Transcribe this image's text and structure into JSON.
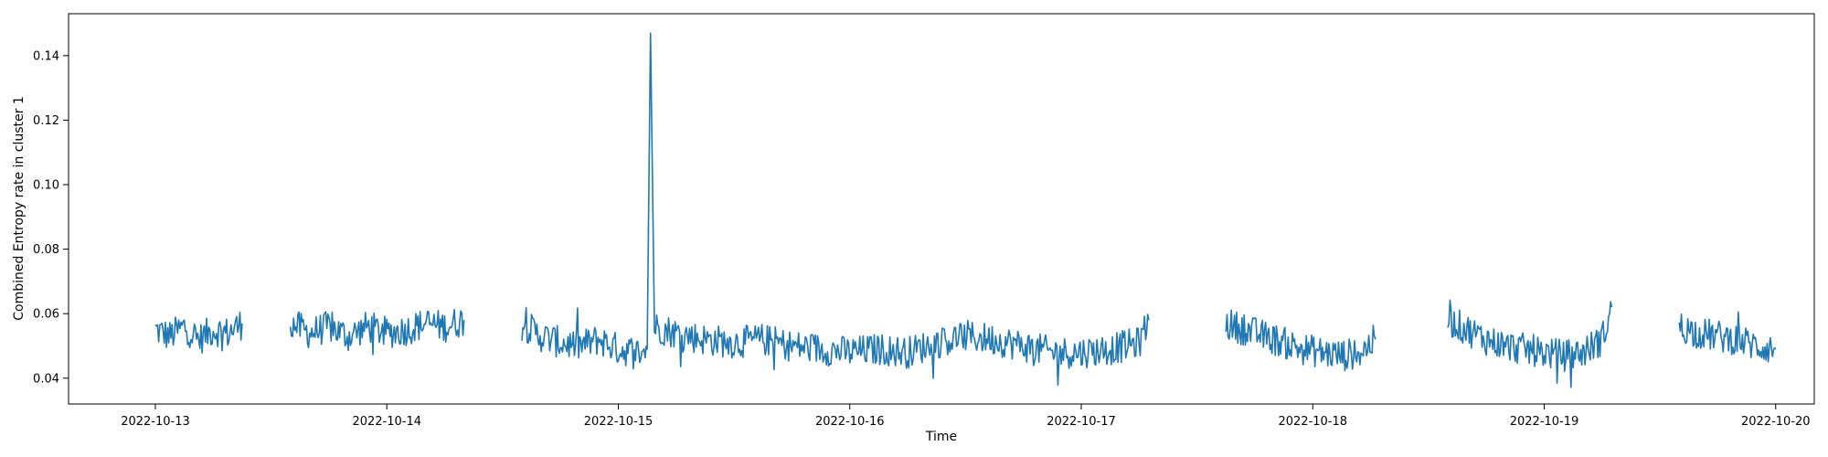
{
  "chart_data": {
    "type": "line",
    "title": "",
    "xlabel": "Time",
    "ylabel": "Combined Entropy rate in cluster 1",
    "x_type": "datetime",
    "xlim": [
      "2022-10-12T15:00",
      "2022-10-20T04:00"
    ],
    "ylim": [
      0.032,
      0.153
    ],
    "x_ticks": [
      "2022-10-13",
      "2022-10-14",
      "2022-10-15",
      "2022-10-16",
      "2022-10-17",
      "2022-10-18",
      "2022-10-19",
      "2022-10-20"
    ],
    "y_ticks": [
      0.04,
      0.06,
      0.08,
      0.1,
      0.12,
      0.14
    ],
    "y_tick_labels": [
      "0.04",
      "0.06",
      "0.08",
      "0.10",
      "0.12",
      "0.14"
    ],
    "grid": false,
    "legend": "none",
    "series": [
      {
        "color": "#1f77b4",
        "segments": [
          [
            [
              "2022-10-13T00:00",
              0.055
            ],
            [
              "2022-10-13T01:30",
              0.053
            ],
            [
              "2022-10-13T03:00",
              0.056
            ],
            [
              "2022-10-13T04:30",
              0.052
            ],
            [
              "2022-10-13T06:00",
              0.055
            ],
            [
              "2022-10-13T07:30",
              0.054
            ],
            [
              "2022-10-13T09:00",
              0.057
            ]
          ],
          [
            [
              "2022-10-13T14:00",
              0.057
            ],
            [
              "2022-10-13T16:00",
              0.054
            ],
            [
              "2022-10-13T18:00",
              0.056
            ],
            [
              "2022-10-13T20:00",
              0.053
            ],
            [
              "2022-10-13T22:00",
              0.056
            ],
            [
              "2022-10-14T00:00",
              0.054
            ],
            [
              "2022-10-14T02:00",
              0.055
            ],
            [
              "2022-10-14T04:00",
              0.057
            ],
            [
              "2022-10-14T06:00",
              0.056
            ],
            [
              "2022-10-14T08:00",
              0.058
            ]
          ],
          [
            [
              "2022-10-14T14:00",
              0.057
            ],
            [
              "2022-10-14T16:00",
              0.053
            ],
            [
              "2022-10-14T18:00",
              0.051
            ],
            [
              "2022-10-14T20:00",
              0.05
            ],
            [
              "2022-10-14T22:00",
              0.052
            ],
            [
              "2022-10-15T00:00",
              0.049
            ],
            [
              "2022-10-15T02:00",
              0.048
            ],
            [
              "2022-10-15T03:00",
              0.049
            ],
            [
              "2022-10-15T03:20",
              0.147
            ],
            [
              "2022-10-15T03:45",
              0.056
            ],
            [
              "2022-10-15T06:00",
              0.054
            ],
            [
              "2022-10-15T09:00",
              0.052
            ],
            [
              "2022-10-15T12:00",
              0.051
            ],
            [
              "2022-10-15T15:00",
              0.052
            ],
            [
              "2022-10-15T18:00",
              0.05
            ],
            [
              "2022-10-15T21:00",
              0.049
            ],
            [
              "2022-10-16T00:00",
              0.048
            ],
            [
              "2022-10-16T03:00",
              0.049
            ],
            [
              "2022-10-16T06:00",
              0.048
            ],
            [
              "2022-10-16T09:00",
              0.051
            ],
            [
              "2022-10-16T12:00",
              0.053
            ],
            [
              "2022-10-16T15:00",
              0.052
            ],
            [
              "2022-10-16T18:00",
              0.05
            ],
            [
              "2022-10-16T21:00",
              0.048
            ],
            [
              "2022-10-17T00:00",
              0.048
            ],
            [
              "2022-10-17T03:00",
              0.049
            ],
            [
              "2022-10-17T06:00",
              0.051
            ],
            [
              "2022-10-17T07:00",
              0.058
            ]
          ],
          [
            [
              "2022-10-17T15:00",
              0.057
            ],
            [
              "2022-10-17T17:00",
              0.055
            ],
            [
              "2022-10-17T19:00",
              0.053
            ],
            [
              "2022-10-17T21:00",
              0.051
            ],
            [
              "2022-10-17T23:00",
              0.049
            ],
            [
              "2022-10-18T01:00",
              0.048
            ],
            [
              "2022-10-18T03:00",
              0.047
            ],
            [
              "2022-10-18T05:00",
              0.048
            ],
            [
              "2022-10-18T06:30",
              0.052
            ]
          ],
          [
            [
              "2022-10-18T14:00",
              0.058
            ],
            [
              "2022-10-18T16:00",
              0.055
            ],
            [
              "2022-10-18T18:00",
              0.052
            ],
            [
              "2022-10-18T20:00",
              0.05
            ],
            [
              "2022-10-18T22:00",
              0.049
            ],
            [
              "2022-10-19T00:00",
              0.048
            ],
            [
              "2022-10-19T02:00",
              0.047
            ],
            [
              "2022-10-19T04:00",
              0.048
            ],
            [
              "2022-10-19T06:00",
              0.052
            ],
            [
              "2022-10-19T07:00",
              0.062
            ]
          ],
          [
            [
              "2022-10-19T14:00",
              0.056
            ],
            [
              "2022-10-19T16:00",
              0.054
            ],
            [
              "2022-10-19T18:00",
              0.053
            ],
            [
              "2022-10-19T20:00",
              0.052
            ],
            [
              "2022-10-19T22:00",
              0.05
            ],
            [
              "2022-10-20T00:00",
              0.049
            ]
          ]
        ]
      }
    ]
  }
}
